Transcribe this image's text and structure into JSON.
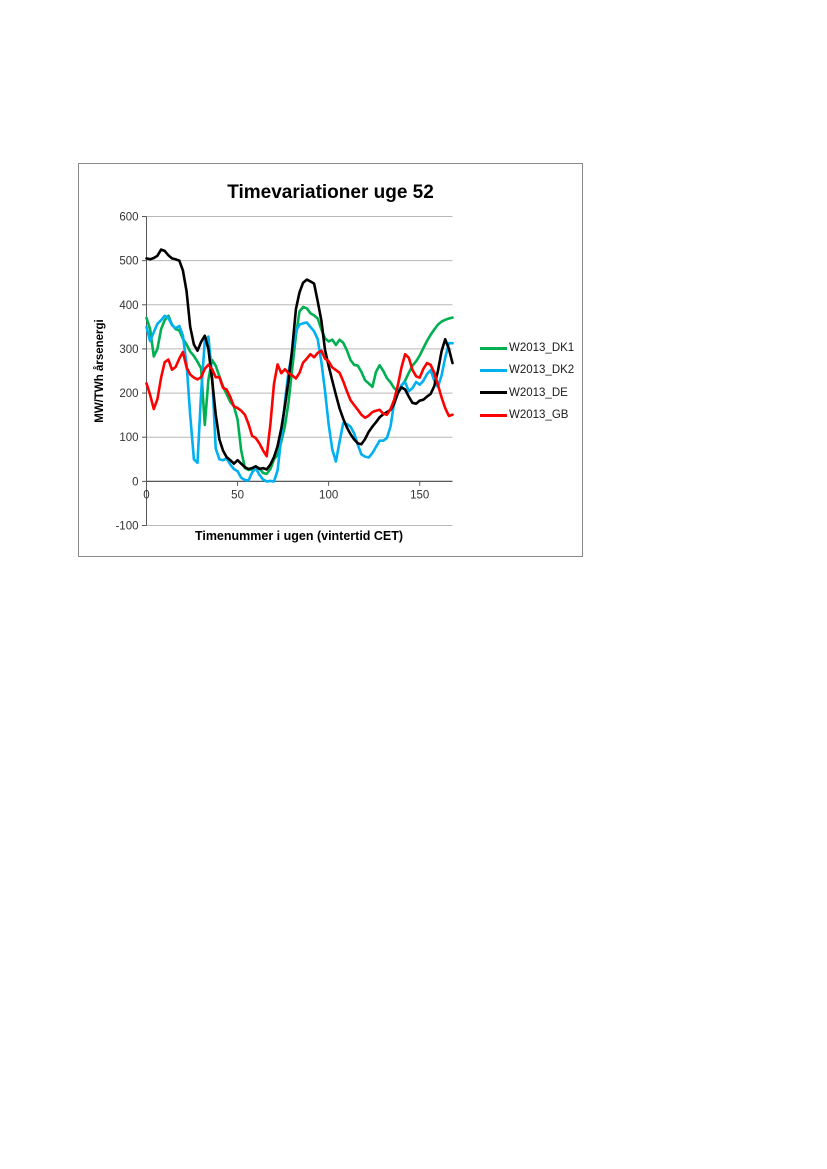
{
  "page": {
    "background": "#ffffff"
  },
  "chart_data": {
    "type": "line",
    "title": "Timevariationer uge 52",
    "xlabel": "Timenummer i ugen (vintertid CET)",
    "ylabel": "MW/TWh årsenergi",
    "xlim": [
      0,
      168
    ],
    "ylim": [
      -100,
      600
    ],
    "x_ticks": [
      0,
      50,
      100,
      150
    ],
    "y_ticks": [
      600,
      500,
      400,
      300,
      200,
      100,
      0,
      -100
    ],
    "grid": true,
    "legend_position": "right",
    "gridline_color": "#b8b8b8",
    "axis_line_color": "#595959",
    "border_color": "#8a8a8a",
    "x": [
      0,
      2,
      4,
      6,
      8,
      10,
      12,
      14,
      16,
      18,
      20,
      22,
      24,
      26,
      28,
      30,
      32,
      34,
      36,
      38,
      40,
      42,
      44,
      46,
      48,
      50,
      52,
      54,
      56,
      58,
      60,
      62,
      64,
      66,
      68,
      70,
      72,
      74,
      76,
      78,
      80,
      82,
      84,
      86,
      88,
      90,
      92,
      94,
      96,
      98,
      100,
      102,
      104,
      106,
      108,
      110,
      112,
      114,
      116,
      118,
      120,
      122,
      124,
      126,
      128,
      130,
      132,
      134,
      136,
      138,
      140,
      142,
      144,
      146,
      148,
      150,
      152,
      154,
      156,
      158,
      160,
      162,
      164,
      166,
      168
    ],
    "series": [
      {
        "name": "W2013_DK1",
        "color": "#00B050",
        "values": [
          370,
          345,
          283,
          300,
          345,
          365,
          375,
          355,
          345,
          342,
          323,
          310,
          294,
          284,
          271,
          256,
          128,
          230,
          275,
          262,
          238,
          215,
          198,
          180,
          170,
          140,
          70,
          30,
          26,
          27,
          33,
          30,
          19,
          17,
          28,
          50,
          60,
          90,
          125,
          180,
          255,
          330,
          385,
          395,
          392,
          381,
          376,
          369,
          344,
          324,
          317,
          321,
          309,
          321,
          314,
          297,
          275,
          264,
          262,
          248,
          229,
          222,
          214,
          248,
          263,
          250,
          234,
          224,
          211,
          204,
          216,
          228,
          246,
          262,
          272,
          285,
          302,
          318,
          332,
          344,
          355,
          362,
          366,
          369,
          371
        ]
      },
      {
        "name": "W2013_DK2",
        "color": "#00B0F0",
        "values": [
          350,
          318,
          338,
          357,
          365,
          375,
          370,
          354,
          347,
          352,
          330,
          265,
          150,
          50,
          42,
          200,
          318,
          328,
          240,
          75,
          50,
          48,
          52,
          38,
          28,
          23,
          8,
          3,
          2,
          20,
          30,
          15,
          4,
          0,
          1,
          0,
          25,
          100,
          180,
          250,
          290,
          340,
          355,
          358,
          360,
          350,
          340,
          322,
          270,
          205,
          130,
          72,
          45,
          90,
          132,
          130,
          124,
          109,
          83,
          61,
          56,
          54,
          64,
          78,
          92,
          92,
          98,
          125,
          180,
          200,
          218,
          225,
          204,
          211,
          225,
          219,
          228,
          243,
          252,
          228,
          214,
          240,
          280,
          313,
          313
        ]
      },
      {
        "name": "W2013_DE",
        "color": "#000000",
        "values": [
          505,
          503,
          506,
          511,
          525,
          522,
          512,
          505,
          503,
          500,
          478,
          430,
          350,
          310,
          296,
          316,
          330,
          300,
          230,
          152,
          95,
          70,
          55,
          48,
          40,
          48,
          40,
          32,
          28,
          30,
          34,
          28,
          30,
          27,
          38,
          55,
          80,
          120,
          170,
          230,
          300,
          390,
          428,
          450,
          457,
          453,
          448,
          408,
          364,
          298,
          262,
          228,
          196,
          165,
          142,
          122,
          107,
          95,
          86,
          84,
          96,
          112,
          124,
          134,
          145,
          152,
          157,
          162,
          176,
          200,
          213,
          208,
          192,
          178,
          176,
          183,
          185,
          192,
          198,
          216,
          250,
          295,
          322,
          300,
          268
        ]
      },
      {
        "name": "W2013_GB",
        "color": "#FF0000",
        "values": [
          222,
          196,
          164,
          186,
          235,
          270,
          276,
          253,
          259,
          278,
          293,
          258,
          242,
          235,
          231,
          236,
          255,
          264,
          254,
          236,
          236,
          212,
          208,
          191,
          170,
          166,
          160,
          151,
          130,
          103,
          98,
          86,
          70,
          57,
          130,
          221,
          265,
          245,
          254,
          245,
          240,
          233,
          246,
          269,
          278,
          288,
          281,
          291,
          296,
          278,
          272,
          258,
          252,
          246,
          227,
          204,
          184,
          173,
          162,
          151,
          144,
          149,
          157,
          160,
          162,
          153,
          151,
          164,
          185,
          218,
          258,
          288,
          280,
          253,
          238,
          235,
          255,
          268,
          264,
          246,
          219,
          190,
          166,
          148,
          151
        ]
      }
    ]
  }
}
